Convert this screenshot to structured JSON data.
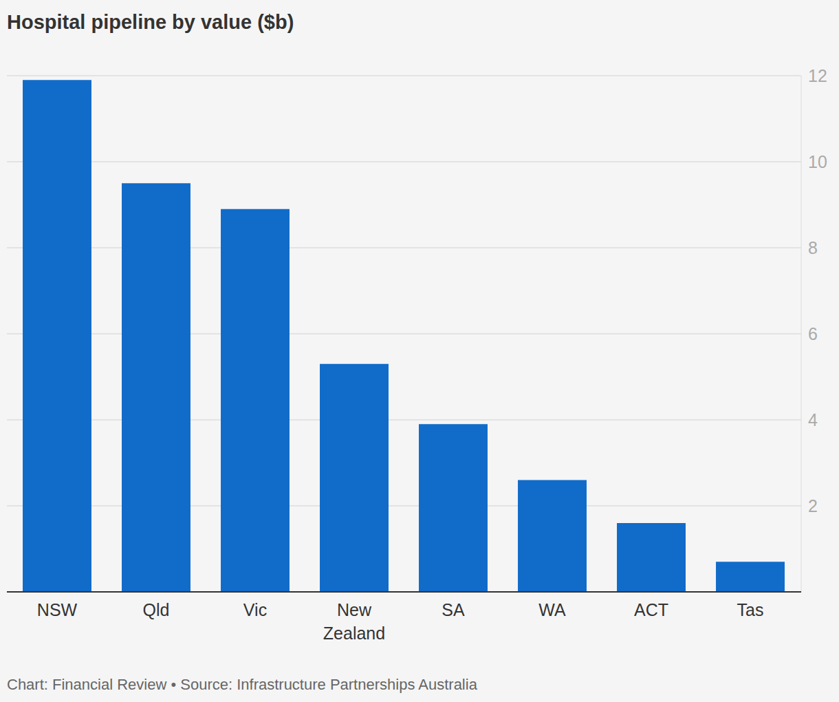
{
  "chart_data": {
    "type": "bar",
    "title": "Hospital pipeline by value ($b)",
    "source": "Chart: Financial Review • Source: Infrastructure Partnerships Australia",
    "categories": [
      "NSW",
      "Qld",
      "Vic",
      "New Zealand",
      "SA",
      "WA",
      "ACT",
      "Tas"
    ],
    "values": [
      11.9,
      9.5,
      8.9,
      5.3,
      3.9,
      2.6,
      1.6,
      0.7
    ],
    "color": "#116bc9",
    "ylim": [
      0,
      12
    ],
    "yticks": [
      2,
      4,
      6,
      8,
      10,
      12
    ],
    "grid": true
  }
}
